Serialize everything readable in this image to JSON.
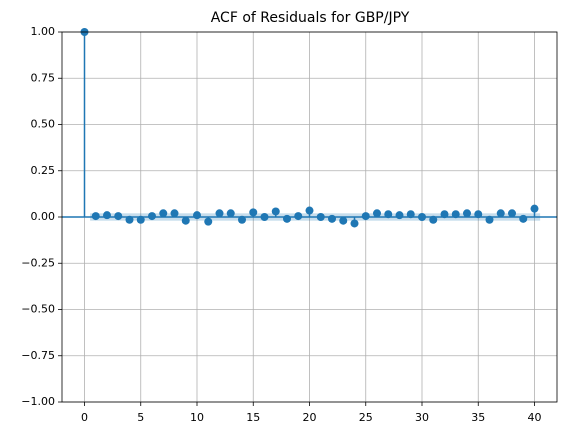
{
  "chart_data": {
    "type": "acf",
    "title": "ACF of Residuals for GBP/JPY",
    "x": [
      0,
      1,
      2,
      3,
      4,
      5,
      6,
      7,
      8,
      9,
      10,
      11,
      12,
      13,
      14,
      15,
      16,
      17,
      18,
      19,
      20,
      21,
      22,
      23,
      24,
      25,
      26,
      27,
      28,
      29,
      30,
      31,
      32,
      33,
      34,
      35,
      36,
      37,
      38,
      39,
      40
    ],
    "values": [
      1.0,
      0.005,
      0.01,
      0.005,
      -0.015,
      -0.015,
      0.005,
      0.02,
      0.02,
      -0.02,
      0.01,
      -0.025,
      0.02,
      0.02,
      -0.015,
      0.025,
      0.0,
      0.03,
      -0.01,
      0.005,
      0.035,
      0.0,
      -0.01,
      -0.02,
      -0.035,
      0.005,
      0.02,
      0.015,
      0.01,
      0.015,
      0.0,
      -0.015,
      0.015,
      0.015,
      0.02,
      0.015,
      -0.015,
      0.02,
      0.02,
      -0.01,
      0.045
    ],
    "confidence_interval": 0.02,
    "color": "#1f77b4",
    "xlim": [
      -2,
      42
    ],
    "xticks": [
      0,
      5,
      10,
      15,
      20,
      25,
      30,
      35,
      40
    ],
    "ylim": [
      -1,
      1
    ],
    "yticks": [
      {
        "value": -1,
        "label": "−1.00"
      },
      {
        "value": -0.75,
        "label": "−0.75"
      },
      {
        "value": -0.5,
        "label": "−0.50"
      },
      {
        "value": -0.25,
        "label": "−0.25"
      },
      {
        "value": 0,
        "label": "0.00"
      },
      {
        "value": 0.25,
        "label": "0.25"
      },
      {
        "value": 0.5,
        "label": "0.50"
      },
      {
        "value": 0.75,
        "label": "0.75"
      },
      {
        "value": 1,
        "label": "1.00"
      }
    ],
    "grid": true
  }
}
